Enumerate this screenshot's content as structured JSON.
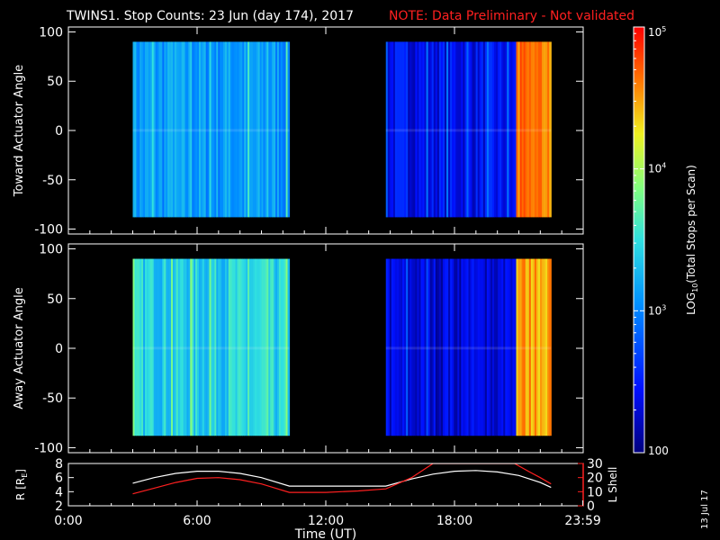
{
  "title": "TWINS1. Stop Counts: 23 Jun (day 174), 2017",
  "note": "NOTE: Data Preliminary - Not validated",
  "date_stamp": "13 Jul 17",
  "chart_data": [
    {
      "type": "heatmap",
      "name": "toward",
      "ylabel": "Toward Actuator Angle",
      "ylim": [
        -105,
        105
      ],
      "yticks": [
        100,
        50,
        0,
        -50,
        -100
      ],
      "x_unit": "hours UT",
      "xlim": [
        0,
        24
      ],
      "blocks": [
        {
          "start_hour": 3.0,
          "end_hour": 10.3,
          "angle_range": [
            -88,
            90
          ],
          "log10_counts_typical": 3.1
        },
        {
          "start_hour": 14.8,
          "end_hour": 22.5,
          "angle_range": [
            -88,
            90
          ],
          "log10_counts_typical": 2.4,
          "high_from_hour": 20.8,
          "log10_counts_high": 4.6
        }
      ]
    },
    {
      "type": "heatmap",
      "name": "away",
      "ylabel": "Away Actuator Angle",
      "ylim": [
        -105,
        105
      ],
      "yticks": [
        100,
        50,
        0,
        -50,
        -100
      ],
      "x_unit": "hours UT",
      "xlim": [
        0,
        24
      ],
      "blocks": [
        {
          "start_hour": 3.0,
          "end_hour": 10.3,
          "angle_range": [
            -88,
            90
          ],
          "log10_counts_typical": 3.4
        },
        {
          "start_hour": 14.8,
          "end_hour": 22.5,
          "angle_range": [
            -88,
            90
          ],
          "log10_counts_typical": 2.3,
          "high_from_hour": 20.8,
          "log10_counts_high": 4.5
        }
      ]
    },
    {
      "type": "line",
      "name": "orbit",
      "xlabel": "Time (UT)",
      "xticks": [
        {
          "hour": 0,
          "label": "0:00"
        },
        {
          "hour": 6,
          "label": "6:00"
        },
        {
          "hour": 12,
          "label": "12:00"
        },
        {
          "hour": 18,
          "label": "18:00"
        },
        {
          "hour": 23.983,
          "label": "23:59"
        }
      ],
      "xlim": [
        0,
        24
      ],
      "left_axis": {
        "label": "R [R",
        "label_sub": "E",
        "label_tail": "]",
        "ylim": [
          2,
          8
        ],
        "ticks": [
          2,
          4,
          6,
          8
        ],
        "color": "#ffffff"
      },
      "right_axis": {
        "label": "L Shell",
        "ylim": [
          0,
          30
        ],
        "ticks": [
          0,
          10,
          20,
          30
        ],
        "color": "#ff2020"
      },
      "series": [
        {
          "axis": "left",
          "color": "#ffffff",
          "x": [
            3.0,
            4.0,
            5.0,
            6.0,
            7.0,
            8.0,
            9.0,
            10.3,
            12.0,
            14.8,
            16.0,
            17.0,
            18.0,
            19.0,
            20.0,
            21.0,
            22.0,
            22.5
          ],
          "y": [
            5.2,
            6.0,
            6.6,
            6.9,
            6.9,
            6.6,
            6.0,
            4.8,
            4.8,
            4.8,
            5.8,
            6.5,
            6.9,
            7.0,
            6.8,
            6.3,
            5.3,
            4.6
          ]
        },
        {
          "axis": "right",
          "color": "#ff2020",
          "x": [
            3.0,
            4.0,
            5.0,
            6.0,
            7.0,
            8.0,
            9.0,
            10.3,
            12.0,
            13.5,
            14.8,
            16.0,
            17.0,
            20.8,
            21.5,
            22.0,
            22.5
          ],
          "y": [
            8.5,
            12.5,
            16.5,
            19.5,
            20.0,
            18.5,
            15.5,
            9.5,
            9.5,
            10.5,
            12.0,
            20.0,
            30.0,
            30.0,
            24.0,
            20.0,
            15.5
          ]
        }
      ]
    },
    {
      "type": "colorbar",
      "label": "LOG",
      "label_sub": "10",
      "label_tail": "(Total Stops per Scan)",
      "scale": "log",
      "range": [
        100,
        100000
      ],
      "ticks": [
        {
          "value": 100000,
          "base": "10",
          "exp": "5"
        },
        {
          "value": 10000,
          "base": "10",
          "exp": "4"
        },
        {
          "value": 1000,
          "base": "10",
          "exp": "3"
        },
        {
          "value": 100,
          "base": "100",
          "exp": ""
        }
      ]
    }
  ]
}
